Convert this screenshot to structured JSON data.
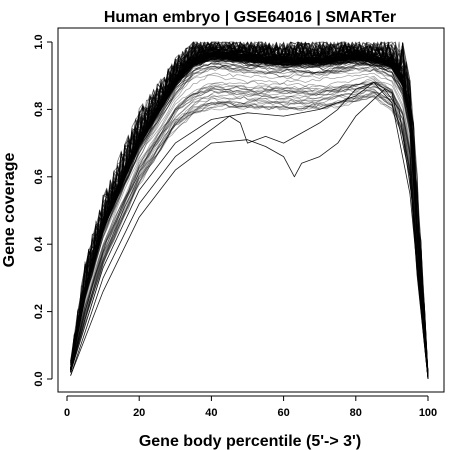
{
  "chart_data": {
    "type": "line",
    "title": "Human embryo | GSE64016 | SMARTer",
    "xlabel": "Gene body percentile (5'-> 3')",
    "ylabel": "Gene coverage",
    "xlim": [
      1,
      100
    ],
    "ylim": [
      0,
      1
    ],
    "x_ticks": [
      "0",
      "20",
      "40",
      "60",
      "80",
      "100"
    ],
    "y_ticks": [
      "0.0",
      "0.2",
      "0.4",
      "0.6",
      "0.8",
      "1.0"
    ],
    "line_color": "#000000",
    "series_count": 160,
    "envelope": {
      "x": [
        1,
        5,
        10,
        20,
        30,
        35,
        40,
        50,
        60,
        70,
        80,
        85,
        90,
        93,
        95,
        97,
        100
      ],
      "upper": [
        0.06,
        0.35,
        0.55,
        0.8,
        0.95,
        1.0,
        1.0,
        1.0,
        1.0,
        1.0,
        1.0,
        1.0,
        1.0,
        1.0,
        0.9,
        0.62,
        0.02
      ],
      "dense": [
        0.03,
        0.27,
        0.47,
        0.72,
        0.9,
        0.96,
        0.98,
        0.97,
        0.96,
        0.96,
        0.97,
        0.96,
        0.95,
        0.9,
        0.8,
        0.45,
        0.01
      ],
      "lower": [
        0.02,
        0.17,
        0.34,
        0.58,
        0.74,
        0.78,
        0.8,
        0.8,
        0.8,
        0.8,
        0.82,
        0.84,
        0.8,
        0.72,
        0.6,
        0.3,
        0.0
      ]
    },
    "outliers": [
      {
        "x": [
          1,
          10,
          20,
          30,
          40,
          50,
          55,
          60,
          63,
          65,
          70,
          75,
          80,
          85,
          88,
          92,
          96,
          100
        ],
        "y": [
          0.01,
          0.26,
          0.48,
          0.62,
          0.7,
          0.71,
          0.69,
          0.66,
          0.6,
          0.64,
          0.66,
          0.7,
          0.78,
          0.83,
          0.86,
          0.8,
          0.5,
          0.0
        ]
      },
      {
        "x": [
          1,
          10,
          20,
          30,
          40,
          45,
          48,
          50,
          55,
          60,
          65,
          70,
          75,
          80,
          85,
          90,
          95,
          100
        ],
        "y": [
          0.01,
          0.3,
          0.52,
          0.66,
          0.74,
          0.78,
          0.76,
          0.7,
          0.72,
          0.7,
          0.73,
          0.76,
          0.8,
          0.86,
          0.88,
          0.82,
          0.55,
          0.0
        ]
      },
      {
        "x": [
          1,
          10,
          20,
          30,
          40,
          50,
          60,
          70,
          80,
          85,
          90,
          95,
          100
        ],
        "y": [
          0.02,
          0.33,
          0.56,
          0.7,
          0.77,
          0.79,
          0.78,
          0.8,
          0.84,
          0.88,
          0.85,
          0.6,
          0.0
        ]
      }
    ]
  }
}
